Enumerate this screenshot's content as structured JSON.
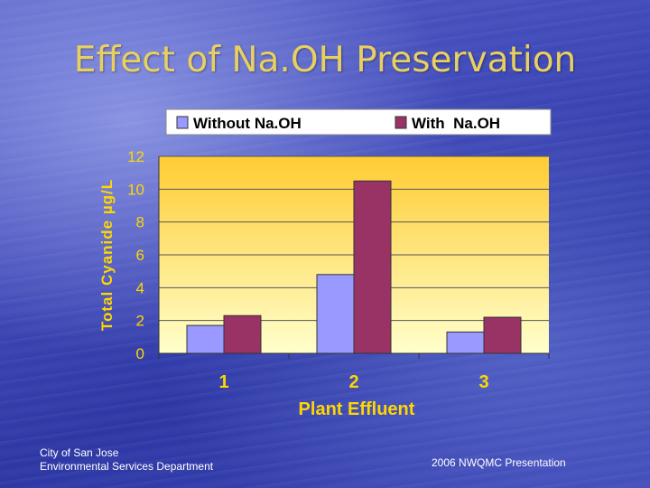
{
  "title": "Effect of Na.OH Preservation",
  "footer": {
    "org_line1": "City of San Jose",
    "org_line2": "Environmental Services Department",
    "presentation": "2006 NWQMC Presentation"
  },
  "colors": {
    "without": "#9999ff",
    "with": "#993366",
    "plot_top": "#ffcc33",
    "plot_bottom": "#ffffcc",
    "axis_text": "#ffd700"
  },
  "chart_data": {
    "type": "bar",
    "categories": [
      "1",
      "2",
      "3"
    ],
    "series": [
      {
        "name": "Without Na.OH",
        "values": [
          1.7,
          4.8,
          1.3
        ]
      },
      {
        "name": "With  Na.OH",
        "values": [
          2.3,
          10.5,
          2.2
        ]
      }
    ],
    "xlabel": "Plant Effluent",
    "ylabel": "Total Cyanide µg/L",
    "ylim": [
      0,
      12
    ],
    "yticks": [
      "0",
      "2",
      "4",
      "6",
      "8",
      "10",
      "12"
    ],
    "grid": true,
    "legend": "top"
  }
}
